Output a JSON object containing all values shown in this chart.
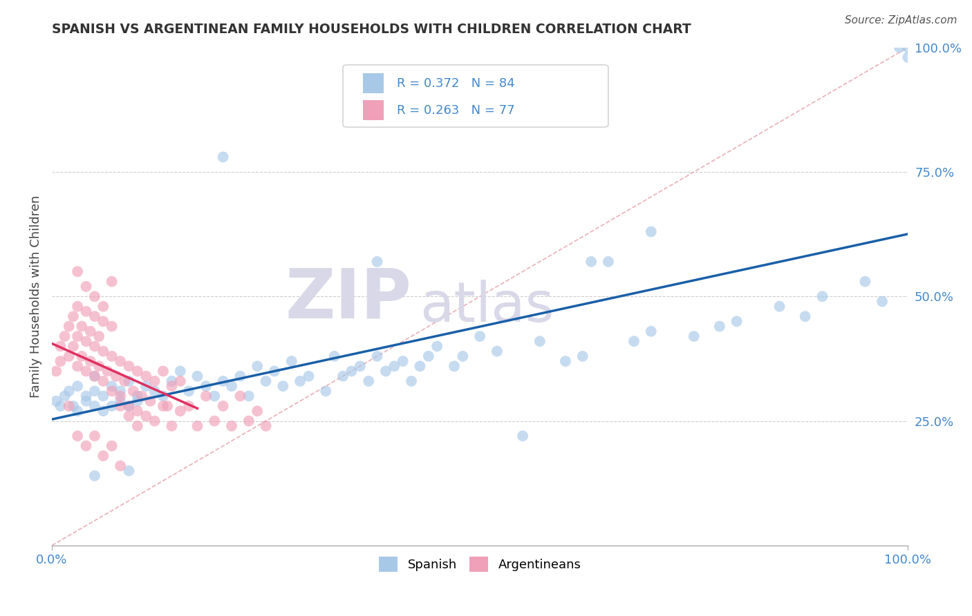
{
  "title": "SPANISH VS ARGENTINEAN FAMILY HOUSEHOLDS WITH CHILDREN CORRELATION CHART",
  "source": "Source: ZipAtlas.com",
  "ylabel": "Family Households with Children",
  "xlim": [
    0,
    1
  ],
  "ylim": [
    0,
    1
  ],
  "legend_r1": "R = 0.372",
  "legend_n1": "N = 84",
  "legend_r2": "R = 0.263",
  "legend_n2": "N = 77",
  "spanish_color": "#a8c8e8",
  "argentinean_color": "#f0a0b8",
  "regression_blue": "#1a5fa8",
  "regression_pink": "#e03060",
  "diag_color": "#e8b0b8",
  "watermark_zip": "ZIP",
  "watermark_atlas": "atlas",
  "watermark_color": "#d8d8e8",
  "grid_color": "#cccccc",
  "background_color": "#ffffff",
  "sp_x": [
    0.005,
    0.01,
    0.015,
    0.02,
    0.025,
    0.03,
    0.03,
    0.04,
    0.04,
    0.05,
    0.05,
    0.05,
    0.06,
    0.06,
    0.07,
    0.07,
    0.08,
    0.08,
    0.09,
    0.09,
    0.1,
    0.1,
    0.11,
    0.12,
    0.13,
    0.14,
    0.15,
    0.16,
    0.17,
    0.18,
    0.19,
    0.2,
    0.21,
    0.22,
    0.23,
    0.24,
    0.25,
    0.26,
    0.27,
    0.28,
    0.29,
    0.3,
    0.32,
    0.33,
    0.34,
    0.35,
    0.36,
    0.37,
    0.38,
    0.39,
    0.4,
    0.41,
    0.42,
    0.43,
    0.44,
    0.45,
    0.47,
    0.48,
    0.5,
    0.52,
    0.55,
    0.57,
    0.6,
    0.62,
    0.65,
    0.68,
    0.7,
    0.75,
    0.78,
    0.8,
    0.85,
    0.88,
    0.9,
    0.95,
    0.97,
    0.99,
    1.0,
    1.0,
    0.2,
    0.38,
    0.7,
    0.63,
    0.09,
    0.05
  ],
  "sp_y": [
    0.29,
    0.28,
    0.3,
    0.31,
    0.28,
    0.27,
    0.32,
    0.3,
    0.29,
    0.28,
    0.31,
    0.34,
    0.27,
    0.3,
    0.28,
    0.32,
    0.29,
    0.31,
    0.28,
    0.33,
    0.3,
    0.29,
    0.32,
    0.31,
    0.3,
    0.33,
    0.35,
    0.31,
    0.34,
    0.32,
    0.3,
    0.33,
    0.32,
    0.34,
    0.3,
    0.36,
    0.33,
    0.35,
    0.32,
    0.37,
    0.33,
    0.34,
    0.31,
    0.38,
    0.34,
    0.35,
    0.36,
    0.33,
    0.38,
    0.35,
    0.36,
    0.37,
    0.33,
    0.36,
    0.38,
    0.4,
    0.36,
    0.38,
    0.42,
    0.39,
    0.22,
    0.41,
    0.37,
    0.38,
    0.57,
    0.41,
    0.43,
    0.42,
    0.44,
    0.45,
    0.48,
    0.46,
    0.5,
    0.53,
    0.49,
    1.0,
    0.98,
    1.0,
    0.78,
    0.57,
    0.63,
    0.57,
    0.15,
    0.14
  ],
  "ar_x": [
    0.005,
    0.01,
    0.01,
    0.015,
    0.02,
    0.02,
    0.025,
    0.025,
    0.03,
    0.03,
    0.03,
    0.035,
    0.035,
    0.04,
    0.04,
    0.04,
    0.045,
    0.045,
    0.05,
    0.05,
    0.05,
    0.055,
    0.055,
    0.06,
    0.06,
    0.06,
    0.065,
    0.07,
    0.07,
    0.07,
    0.075,
    0.08,
    0.08,
    0.085,
    0.09,
    0.09,
    0.095,
    0.1,
    0.1,
    0.105,
    0.11,
    0.11,
    0.115,
    0.12,
    0.12,
    0.13,
    0.13,
    0.135,
    0.14,
    0.14,
    0.15,
    0.15,
    0.16,
    0.17,
    0.18,
    0.19,
    0.2,
    0.21,
    0.22,
    0.23,
    0.24,
    0.25,
    0.03,
    0.04,
    0.05,
    0.06,
    0.07,
    0.08,
    0.09,
    0.1,
    0.02,
    0.03,
    0.04,
    0.05,
    0.06,
    0.07,
    0.08
  ],
  "ar_y": [
    0.35,
    0.4,
    0.37,
    0.42,
    0.38,
    0.44,
    0.4,
    0.46,
    0.36,
    0.42,
    0.48,
    0.38,
    0.44,
    0.35,
    0.41,
    0.47,
    0.37,
    0.43,
    0.34,
    0.4,
    0.46,
    0.36,
    0.42,
    0.33,
    0.39,
    0.45,
    0.35,
    0.31,
    0.38,
    0.44,
    0.34,
    0.3,
    0.37,
    0.33,
    0.28,
    0.36,
    0.31,
    0.27,
    0.35,
    0.3,
    0.26,
    0.34,
    0.29,
    0.25,
    0.33,
    0.28,
    0.35,
    0.28,
    0.24,
    0.32,
    0.27,
    0.33,
    0.28,
    0.24,
    0.3,
    0.25,
    0.28,
    0.24,
    0.3,
    0.25,
    0.27,
    0.24,
    0.55,
    0.52,
    0.5,
    0.48,
    0.53,
    0.28,
    0.26,
    0.24,
    0.28,
    0.22,
    0.2,
    0.22,
    0.18,
    0.2,
    0.16
  ]
}
